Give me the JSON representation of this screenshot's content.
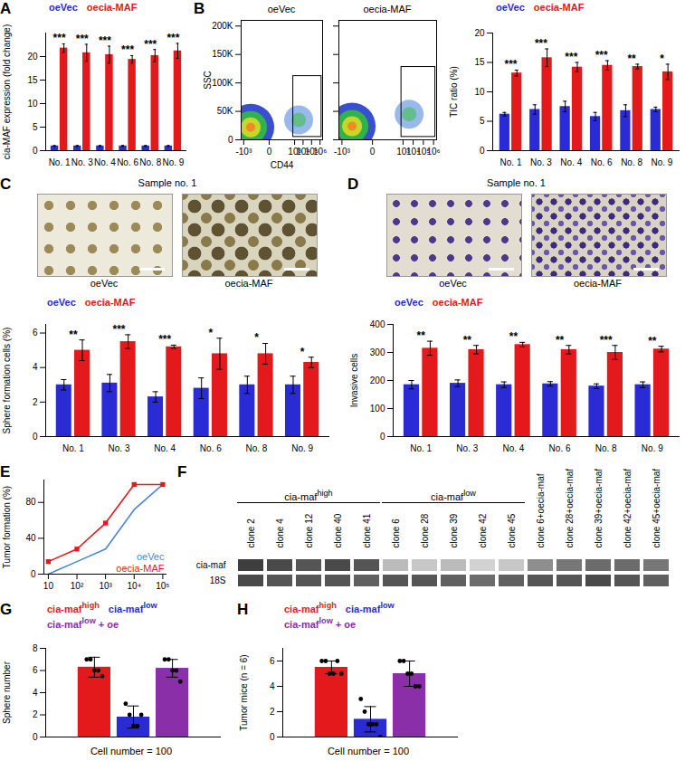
{
  "chart_data": [
    {
      "panel": "A",
      "type": "bar",
      "ylabel": "cia-MAF expression (fold change)",
      "categories": [
        "No. 1",
        "No. 3",
        "No. 4",
        "No. 6",
        "No. 8",
        "No. 9"
      ],
      "series": [
        {
          "name": "oeVec",
          "color": "#2b2bd6",
          "values": [
            1,
            1,
            1,
            1,
            1,
            1
          ],
          "errors": [
            0.1,
            0.1,
            0.1,
            0.1,
            0.1,
            0.1
          ]
        },
        {
          "name": "oecia-MAF",
          "color": "#e3191c",
          "values": [
            21.8,
            20.8,
            20.4,
            19.4,
            20.2,
            21.2
          ],
          "errors": [
            0.9,
            1.8,
            1.8,
            0.8,
            1.3,
            1.6
          ]
        }
      ],
      "significance": [
        "***",
        "***",
        "***",
        "***",
        "***",
        "***"
      ],
      "ylim": [
        0,
        25
      ],
      "yticks": [
        0,
        5,
        10,
        15,
        20
      ]
    },
    {
      "panel": "B",
      "type": "scatter",
      "title": "oeVec",
      "xlabel": "CD44",
      "ylabel": "SSC",
      "log": "x",
      "xlim": [
        -2000,
        2000000
      ],
      "xticks": [
        {
          "value": -1000,
          "label": "-10³"
        },
        0,
        {
          "value": 1000,
          "label": "10³"
        },
        {
          "value": 10000,
          "label": "10⁴"
        },
        {
          "value": 100000,
          "label": "10⁵"
        },
        {
          "value": 1000000,
          "label": "10⁶"
        }
      ],
      "ylim": [
        0,
        210000
      ],
      "yticks": [
        0,
        {
          "value": 50000,
          "label": "50K"
        },
        {
          "value": 100000,
          "label": "100K"
        },
        {
          "value": 150000,
          "label": "150K"
        },
        {
          "value": 200000,
          "label": "200K"
        }
      ],
      "gate": {
        "x": [
          700,
          1500000
        ],
        "y": [
          5000,
          112000
        ]
      },
      "populations": [
        {
          "x": -150,
          "y": 22000
        },
        {
          "x": 3000,
          "y": 35000
        }
      ]
    },
    {
      "type": "scatter",
      "title": "oecia-MAF",
      "log": "x",
      "tick_labels": "x",
      "xlim": [
        -2000,
        2000000
      ],
      "xticks": [
        {
          "value": -1000,
          "label": "-10³"
        },
        0,
        {
          "value": 1000,
          "label": "10³"
        },
        {
          "value": 10000,
          "label": "10⁴"
        },
        {
          "value": 100000,
          "label": "10⁵"
        },
        {
          "value": 1000000,
          "label": "10⁶"
        }
      ],
      "ylim": [
        0,
        210000
      ],
      "yticks": [
        0,
        {
          "value": 50000,
          "label": "50K"
        },
        {
          "value": 100000,
          "label": "100K"
        },
        {
          "value": 150000,
          "label": "150K"
        },
        {
          "value": 200000,
          "label": "200K"
        }
      ],
      "gate": {
        "x": [
          700,
          1500000
        ],
        "y": [
          5000,
          128000
        ]
      },
      "populations": [
        {
          "x": -100,
          "y": 24000
        },
        {
          "x": 4000,
          "y": 45000
        }
      ]
    },
    {
      "type": "bar",
      "ylabel": "TIC ratio (%)",
      "categories": [
        "No. 1",
        "No. 3",
        "No. 4",
        "No. 6",
        "No. 8",
        "No. 9"
      ],
      "series": [
        {
          "name": "oeVec",
          "color": "#2b2bd6",
          "values": [
            6.2,
            7.0,
            7.5,
            5.8,
            6.8,
            7.0
          ],
          "errors": [
            0.3,
            0.8,
            0.9,
            0.7,
            1.0,
            0.4
          ]
        },
        {
          "name": "oecia-MAF",
          "color": "#e3191c",
          "values": [
            13.2,
            15.8,
            14.2,
            14.5,
            14.3,
            13.4
          ],
          "errors": [
            0.5,
            1.5,
            0.8,
            0.8,
            0.4,
            1.3
          ]
        }
      ],
      "significance": [
        "***",
        "***",
        "***",
        "***",
        "**",
        "*"
      ],
      "ylim": [
        0,
        20
      ],
      "yticks": [
        0,
        5,
        10,
        15,
        20
      ]
    },
    {
      "panel": "C",
      "type": "image",
      "subtitle": "Sample no. 1",
      "images": [
        "oeVec",
        "oecia-MAF"
      ]
    },
    {
      "type": "bar",
      "ylabel": "Sphere formation cells (%)",
      "categories": [
        "No. 1",
        "No. 3",
        "No. 4",
        "No. 6",
        "No. 8",
        "No. 9"
      ],
      "series": [
        {
          "name": "oeVec",
          "color": "#2b2bd6",
          "values": [
            3.0,
            3.1,
            2.3,
            2.8,
            3.0,
            3.0
          ],
          "errors": [
            0.3,
            0.5,
            0.3,
            0.6,
            0.5,
            0.5
          ]
        },
        {
          "name": "oecia-MAF",
          "color": "#e3191c",
          "values": [
            5.0,
            5.5,
            5.2,
            4.8,
            4.8,
            4.3
          ],
          "errors": [
            0.6,
            0.4,
            0.1,
            0.9,
            0.6,
            0.3
          ]
        }
      ],
      "significance": [
        "**",
        "***",
        "***",
        "*",
        "*",
        "*"
      ],
      "ylim": [
        0,
        6.5
      ],
      "yticks": [
        0,
        2,
        4,
        6
      ]
    },
    {
      "panel": "D",
      "type": "image",
      "subtitle": "Sample no. 1",
      "images": [
        "oeVec",
        "oecia-MAF"
      ]
    },
    {
      "type": "bar",
      "ylabel": "Invasive cells",
      "categories": [
        "No. 1",
        "No. 3",
        "No. 4",
        "No. 6",
        "No. 8",
        "No. 9"
      ],
      "series": [
        {
          "name": "oeVec",
          "color": "#2b2bd6",
          "values": [
            185,
            190,
            185,
            188,
            180,
            185
          ],
          "errors": [
            15,
            12,
            10,
            8,
            8,
            10
          ]
        },
        {
          "name": "oecia-MAF",
          "color": "#e3191c",
          "values": [
            315,
            310,
            328,
            310,
            300,
            312
          ],
          "errors": [
            25,
            15,
            8,
            15,
            25,
            10
          ]
        }
      ],
      "significance": [
        "**",
        "**",
        "**",
        "**",
        "***",
        "**"
      ],
      "ylim": [
        0,
        400
      ],
      "yticks": [
        0,
        100,
        200,
        300,
        400
      ]
    },
    {
      "panel": "E",
      "type": "line",
      "ylabel": "Tumor formation (%)",
      "log": "x",
      "legend": "bottom-right",
      "x": [
        10,
        100,
        1000,
        10000,
        100000
      ],
      "xlim": [
        7,
        140000
      ],
      "xticks": [
        10,
        {
          "value": 100,
          "label": "10²"
        },
        {
          "value": 1000,
          "label": "10³"
        },
        {
          "value": 10000,
          "label": "10⁴"
        },
        {
          "value": 100000,
          "label": "10⁵"
        }
      ],
      "ylim": [
        0,
        105
      ],
      "yticks": [
        0,
        40,
        80
      ],
      "series": [
        {
          "name": "oeVec",
          "color": "#4a86d8",
          "values": [
            0,
            14,
            28,
            72,
            100
          ]
        },
        {
          "name": "oecia-MAF",
          "color": "#e3191c",
          "marker": "square",
          "values": [
            14,
            28,
            57,
            100,
            100
          ]
        }
      ]
    },
    {
      "panel": "F",
      "type": "blot",
      "lanes": [
        "clone 2",
        "clone 4",
        "clone 12",
        "clone 40",
        "clone 41",
        "clone 6",
        "clone 28",
        "clone 39",
        "clone 42",
        "clone 45",
        "clone 6+oecia-maf",
        "clone 28+oecia-maf",
        "clone 39+oecia-maf",
        "clone 42+oecia-maf",
        "clone 45+oecia-maf"
      ],
      "groups": [
        {
          "name": "cia-maf",
          "sup": "high",
          "lanes": [
            "clone 2",
            "clone 41"
          ]
        },
        {
          "name": "cia-maf",
          "sup": "low",
          "lanes": [
            "clone 6",
            "clone 45"
          ]
        }
      ],
      "rows": [
        {
          "name": "cia-maf",
          "values": [
            0.8,
            0.75,
            0.7,
            0.75,
            0.7,
            0.25,
            0.2,
            0.25,
            0.15,
            0.2,
            0.45,
            0.55,
            0.6,
            0.6,
            0.55
          ]
        },
        {
          "name": "18S",
          "values": [
            0.75,
            0.7,
            0.7,
            0.7,
            0.65,
            0.7,
            0.7,
            0.65,
            0.6,
            0.65,
            0.7,
            0.7,
            0.75,
            0.7,
            0.65
          ]
        }
      ],
      "clim": [
        0,
        1
      ]
    },
    {
      "panel": "G",
      "type": "bar",
      "ylabel": "Sphere number",
      "caption": "Cell number = 100",
      "categories": [
        null
      ],
      "tick_labels": "y",
      "series": [
        {
          "name": "cia-maf",
          "sup": "high",
          "color": "#e3191c",
          "values": [
            6.3
          ],
          "errors": [
            0.9
          ],
          "points": [
            7,
            7,
            6,
            6,
            5.5
          ]
        },
        {
          "name": "cia-maf",
          "sup": "low",
          "color": "#2b2bd6",
          "values": [
            1.8
          ],
          "errors": [
            1.0
          ],
          "points": [
            3,
            2,
            1,
            1,
            2
          ]
        },
        {
          "name": "cia-maf",
          "sup": "low",
          "suffix": " + oe",
          "color": "#8b2fa8",
          "values": [
            6.2
          ],
          "errors": [
            0.8
          ],
          "points": [
            7,
            7,
            6,
            6,
            5
          ]
        }
      ],
      "ylim": [
        0,
        8
      ],
      "yticks": [
        0,
        2,
        4,
        6,
        8
      ]
    },
    {
      "panel": "H",
      "type": "bar",
      "ylabel": "Tumor mice (n = 6)",
      "caption": "Cell number = 100",
      "categories": [
        null
      ],
      "tick_labels": "y",
      "series": [
        {
          "name": "cia-maf",
          "sup": "high",
          "color": "#e3191c",
          "values": [
            5.5
          ],
          "errors": [
            0.5
          ],
          "points": [
            6,
            6,
            5,
            5,
            6,
            5
          ]
        },
        {
          "name": "cia-maf",
          "sup": "low",
          "color": "#2b2bd6",
          "values": [
            1.4
          ],
          "errors": [
            1.0
          ],
          "points": [
            3,
            2,
            1,
            1,
            1,
            0
          ]
        },
        {
          "name": "cia-maf",
          "sup": "low",
          "suffix": " + oe",
          "color": "#8b2fa8",
          "values": [
            5.0
          ],
          "errors": [
            1.0
          ],
          "points": [
            6,
            6,
            5,
            5,
            4,
            4
          ]
        }
      ],
      "ylim": [
        0,
        7
      ],
      "yticks": [
        0,
        2,
        4,
        6
      ]
    }
  ]
}
